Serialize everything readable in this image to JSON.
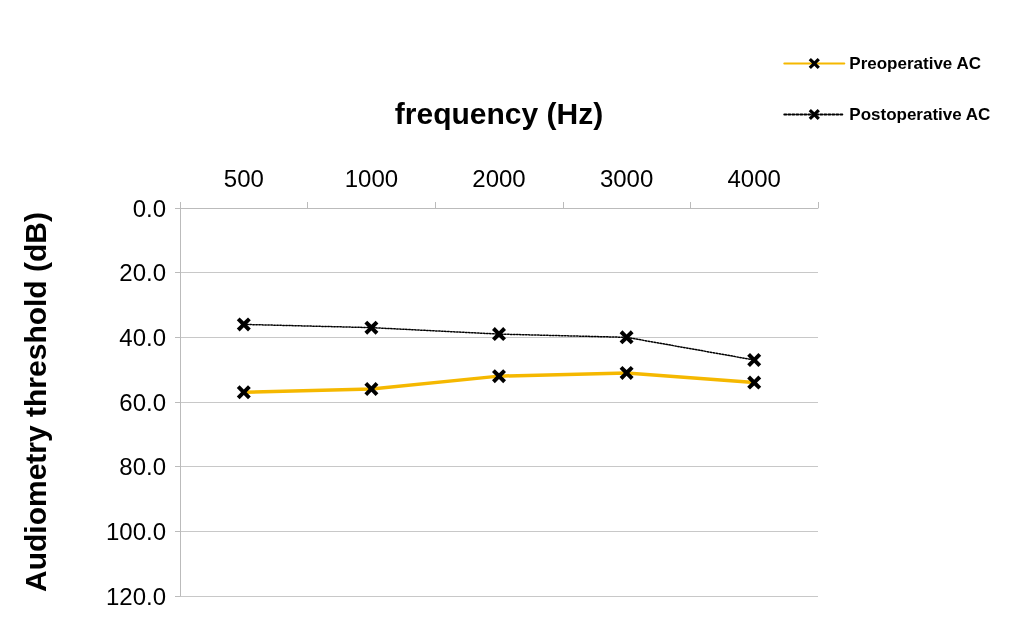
{
  "chart_data": {
    "type": "line",
    "xlabel": "frequency (Hz)",
    "ylabel": "Audiometry threshold (dB)",
    "categories": [
      "500",
      "1000",
      "2000",
      "3000",
      "4000"
    ],
    "series": [
      {
        "name": "Preoperative AC",
        "color": "#f5b800",
        "line_style": "solid",
        "values": [
          57,
          56,
          52,
          51,
          54
        ]
      },
      {
        "name": "Postoperative AC",
        "color": "#000000",
        "line_style": "dotted",
        "values": [
          36,
          37,
          39,
          40,
          47
        ]
      }
    ],
    "ylim": [
      120,
      0
    ],
    "yticks": [
      {
        "value": 0,
        "label": "0.0"
      },
      {
        "value": 20,
        "label": "20.0"
      },
      {
        "value": 40,
        "label": "40.0"
      },
      {
        "value": 60,
        "label": "60.0"
      },
      {
        "value": 80,
        "label": "80.0"
      },
      {
        "value": 100,
        "label": "100.0"
      },
      {
        "value": 120,
        "label": "120.0"
      }
    ],
    "grid": "y",
    "legend": "top right",
    "marker": "cross"
  }
}
